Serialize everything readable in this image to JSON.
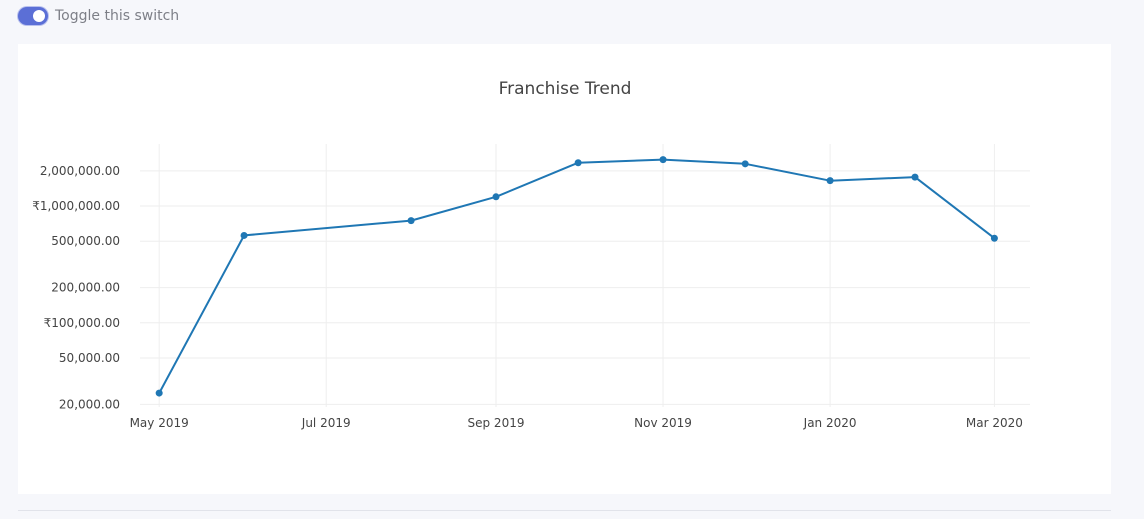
{
  "toggle": {
    "label": "Toggle this switch",
    "checked": true
  },
  "colors": {
    "switch_on": "#5b6fd6",
    "series_line": "#1f77b4",
    "gridline": "#eeeeee"
  },
  "chart_data": {
    "type": "line",
    "title": "Franchise Trend",
    "xlabel": "",
    "ylabel": "",
    "y_scale": "log",
    "xlim": [
      "2019-04-24",
      "2020-03-14"
    ],
    "x_ticks": [
      {
        "date": "2019-05-01",
        "label": "May 2019"
      },
      {
        "date": "2019-07-01",
        "label": "Jul 2019"
      },
      {
        "date": "2019-09-01",
        "label": "Sep 2019"
      },
      {
        "date": "2019-11-01",
        "label": "Nov 2019"
      },
      {
        "date": "2020-01-01",
        "label": "Jan 2020"
      },
      {
        "date": "2020-03-01",
        "label": "Mar 2020"
      }
    ],
    "y_ticks": [
      {
        "value": 20000,
        "label": "20,000.00"
      },
      {
        "value": 50000,
        "label": "50,000.00"
      },
      {
        "value": 100000,
        "label": "₹100,000.00"
      },
      {
        "value": 200000,
        "label": "200,000.00"
      },
      {
        "value": 500000,
        "label": "500,000.00"
      },
      {
        "value": 1000000,
        "label": "₹1,000,000.00"
      },
      {
        "value": 2000000,
        "label": "2,000,000.00"
      }
    ],
    "ylim": [
      19000,
      3400000
    ],
    "grid": true,
    "series": [
      {
        "points": [
          {
            "x": "2019-05-01",
            "y": 25000
          },
          {
            "x": "2019-06-01",
            "y": 560000
          },
          {
            "x": "2019-08-01",
            "y": 750000
          },
          {
            "x": "2019-09-01",
            "y": 1200000
          },
          {
            "x": "2019-10-01",
            "y": 2350000
          },
          {
            "x": "2019-11-01",
            "y": 2500000
          },
          {
            "x": "2019-12-01",
            "y": 2300000
          },
          {
            "x": "2020-01-01",
            "y": 1650000
          },
          {
            "x": "2020-02-01",
            "y": 1770000
          },
          {
            "x": "2020-03-01",
            "y": 530000
          }
        ]
      }
    ]
  }
}
